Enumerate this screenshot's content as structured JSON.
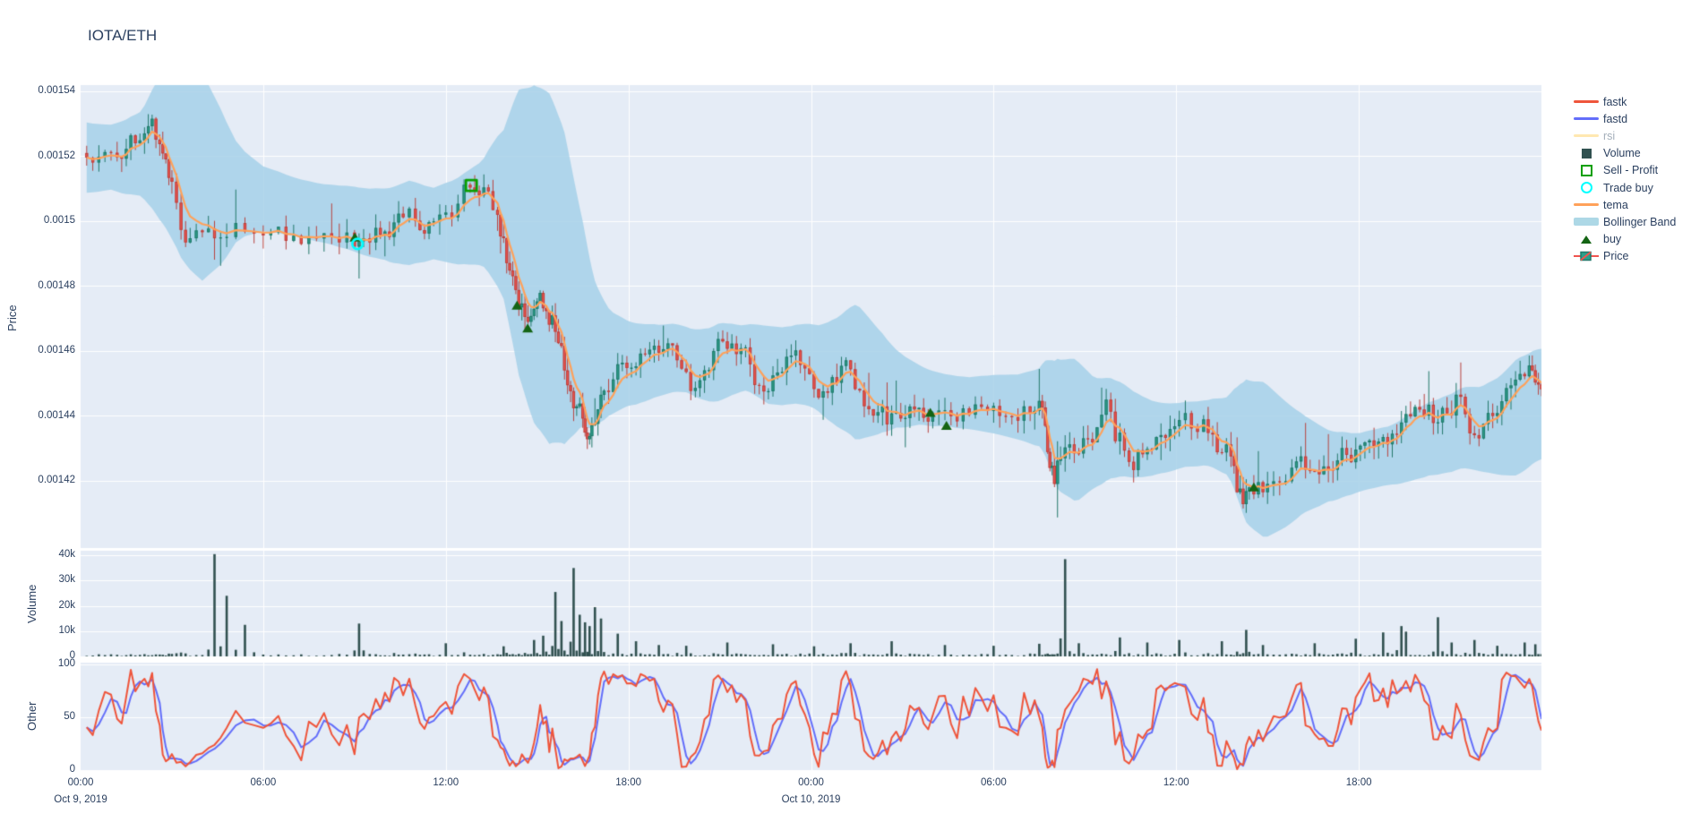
{
  "page": {
    "title": "IOTA/ETH"
  },
  "colors": {
    "text": "#2a3f5f",
    "dim_text": "#a4afba",
    "plot_bg": "#e5ecf6",
    "grid": "#ffffff",
    "candle_up": "#2ca08c",
    "candle_up_line": "#22786a",
    "candle_down": "#ef544f",
    "candle_down_line": "#b8433f",
    "volume_bar": "#315150",
    "tema": "#ffa15a",
    "fastk": "#ef553b",
    "fastd": "#636efa",
    "rsi": "#fecb52",
    "bollinger": "#add8e6",
    "buy": "#146414",
    "sell_profit": "#0a9f00",
    "trade_buy": "#00ffff"
  },
  "chart_data": {
    "type": "candlestick",
    "title": "IOTA/ETH",
    "grid": true,
    "legend_position": "right",
    "time_axis": {
      "range_hours": [
        0,
        48
      ],
      "ticks": [
        {
          "t": 0,
          "label": "00:00",
          "date": "Oct 9, 2019"
        },
        {
          "t": 6,
          "label": "06:00"
        },
        {
          "t": 12,
          "label": "12:00"
        },
        {
          "t": 18,
          "label": "18:00"
        },
        {
          "t": 24,
          "label": "00:00",
          "date": "Oct 10, 2019"
        },
        {
          "t": 30,
          "label": "06:00"
        },
        {
          "t": 36,
          "label": "12:00"
        },
        {
          "t": 42,
          "label": "18:00"
        }
      ]
    },
    "panels": {
      "price": {
        "ylabel": "Price",
        "range": [
          0.001399,
          0.001542
        ],
        "ticks": [
          {
            "v": 0.00154,
            "label": "0.00154"
          },
          {
            "v": 0.00152,
            "label": "0.00152"
          },
          {
            "v": 0.0015,
            "label": "0.0015"
          },
          {
            "v": 0.00148,
            "label": "0.00148"
          },
          {
            "v": 0.00146,
            "label": "0.00146"
          },
          {
            "v": 0.00144,
            "label": "0.00144"
          },
          {
            "v": 0.00142,
            "label": "0.00142"
          }
        ]
      },
      "volume": {
        "ylabel": "Volume",
        "range": [
          0,
          42000
        ],
        "ticks": [
          {
            "v": 40000,
            "label": "40k"
          },
          {
            "v": 30000,
            "label": "30k"
          },
          {
            "v": 20000,
            "label": "20k"
          },
          {
            "v": 10000,
            "label": "10k"
          },
          {
            "v": 0,
            "label": "0"
          }
        ]
      },
      "other": {
        "ylabel": "Other",
        "range": [
          0,
          100
        ],
        "ticks": [
          {
            "v": 100,
            "label": "100"
          },
          {
            "v": 50,
            "label": "50"
          },
          {
            "v": 0,
            "label": "0"
          }
        ]
      }
    },
    "series": {
      "price_close_anchors": [
        [
          0,
          0.001521
        ],
        [
          0.4,
          0.001518
        ],
        [
          0.8,
          0.001522
        ],
        [
          1.2,
          0.001519
        ],
        [
          1.5,
          0.001523
        ],
        [
          1.8,
          0.001525
        ],
        [
          2.1,
          0.001528
        ],
        [
          2.35,
          0.001531
        ],
        [
          2.6,
          0.001524
        ],
        [
          2.8,
          0.001519
        ],
        [
          3.0,
          0.001513
        ],
        [
          3.3,
          0.001497
        ],
        [
          3.6,
          0.001495
        ],
        [
          4.0,
          0.001497
        ],
        [
          4.4,
          0.001494
        ],
        [
          4.8,
          0.001496
        ],
        [
          5.4,
          0.001497
        ],
        [
          6.0,
          0.001496
        ],
        [
          6.5,
          0.001498
        ],
        [
          7.0,
          0.001495
        ],
        [
          7.5,
          0.001495
        ],
        [
          8.0,
          0.001496
        ],
        [
          8.5,
          0.001494
        ],
        [
          9.0,
          0.001493
        ],
        [
          9.3,
          0.001494
        ],
        [
          9.7,
          0.001498
        ],
        [
          10.0,
          0.001497
        ],
        [
          10.3,
          0.001499
        ],
        [
          10.6,
          0.001502
        ],
        [
          11.0,
          0.0015
        ],
        [
          11.3,
          0.001497
        ],
        [
          11.6,
          0.001499
        ],
        [
          12.0,
          0.001502
        ],
        [
          12.4,
          0.001506
        ],
        [
          12.8,
          0.001511
        ],
        [
          13.1,
          0.001509
        ],
        [
          13.4,
          0.00151
        ],
        [
          13.7,
          0.001503
        ],
        [
          13.9,
          0.001494
        ],
        [
          14.1,
          0.001485
        ],
        [
          14.3,
          0.001479
        ],
        [
          14.5,
          0.001474
        ],
        [
          14.7,
          0.001469
        ],
        [
          14.9,
          0.001474
        ],
        [
          15.1,
          0.001477
        ],
        [
          15.3,
          0.001472
        ],
        [
          15.5,
          0.00147
        ],
        [
          15.7,
          0.001463
        ],
        [
          15.9,
          0.001455
        ],
        [
          16.1,
          0.001448
        ],
        [
          16.3,
          0.001443
        ],
        [
          16.5,
          0.001439
        ],
        [
          16.65,
          0.001433
        ],
        [
          16.8,
          0.001437
        ],
        [
          17.0,
          0.001443
        ],
        [
          17.2,
          0.001448
        ],
        [
          17.5,
          0.001452
        ],
        [
          17.8,
          0.001457
        ],
        [
          18.1,
          0.001455
        ],
        [
          18.4,
          0.001459
        ],
        [
          18.7,
          0.001461
        ],
        [
          19.0,
          0.001459
        ],
        [
          19.3,
          0.001462
        ],
        [
          19.6,
          0.001457
        ],
        [
          19.9,
          0.001453
        ],
        [
          20.2,
          0.001449
        ],
        [
          20.5,
          0.001453
        ],
        [
          20.8,
          0.001459
        ],
        [
          21.1,
          0.001462
        ],
        [
          21.4,
          0.001462
        ],
        [
          21.7,
          0.001461
        ],
        [
          22.0,
          0.001456
        ],
        [
          22.3,
          0.00145
        ],
        [
          22.6,
          0.001448
        ],
        [
          22.9,
          0.001453
        ],
        [
          23.2,
          0.001459
        ],
        [
          23.5,
          0.001461
        ],
        [
          23.8,
          0.001455
        ],
        [
          24.1,
          0.001449
        ],
        [
          24.4,
          0.001447
        ],
        [
          24.7,
          0.001451
        ],
        [
          25.0,
          0.001455
        ],
        [
          25.3,
          0.001455
        ],
        [
          25.6,
          0.001448
        ],
        [
          25.9,
          0.001443
        ],
        [
          26.2,
          0.001441
        ],
        [
          26.5,
          0.001438
        ],
        [
          26.8,
          0.001441
        ],
        [
          27.1,
          0.001439
        ],
        [
          27.4,
          0.001441
        ],
        [
          27.7,
          0.001439
        ],
        [
          28.0,
          0.00144
        ],
        [
          28.4,
          0.001441
        ],
        [
          28.8,
          0.001439
        ],
        [
          29.2,
          0.001441
        ],
        [
          29.6,
          0.001442
        ],
        [
          30.0,
          0.001443
        ],
        [
          30.4,
          0.00144
        ],
        [
          30.8,
          0.001439
        ],
        [
          31.2,
          0.001441
        ],
        [
          31.5,
          0.001444
        ],
        [
          31.7,
          0.001437
        ],
        [
          31.85,
          0.001425
        ],
        [
          32.0,
          0.001419
        ],
        [
          32.2,
          0.001428
        ],
        [
          32.5,
          0.001431
        ],
        [
          32.8,
          0.001428
        ],
        [
          33.1,
          0.001433
        ],
        [
          33.4,
          0.001436
        ],
        [
          33.7,
          0.001446
        ],
        [
          34.0,
          0.001433
        ],
        [
          34.3,
          0.00143
        ],
        [
          34.6,
          0.001424
        ],
        [
          34.9,
          0.001428
        ],
        [
          35.2,
          0.00143
        ],
        [
          35.5,
          0.001434
        ],
        [
          35.8,
          0.001437
        ],
        [
          36.1,
          0.001439
        ],
        [
          36.5,
          0.001437
        ],
        [
          36.9,
          0.001438
        ],
        [
          37.2,
          0.001435
        ],
        [
          37.5,
          0.001429
        ],
        [
          37.8,
          0.001427
        ],
        [
          38.0,
          0.001417
        ],
        [
          38.2,
          0.001412
        ],
        [
          38.4,
          0.001419
        ],
        [
          38.7,
          0.001419
        ],
        [
          39.0,
          0.001419
        ],
        [
          39.4,
          0.00142
        ],
        [
          39.8,
          0.001424
        ],
        [
          40.1,
          0.001428
        ],
        [
          40.4,
          0.001424
        ],
        [
          40.7,
          0.001421
        ],
        [
          41.0,
          0.001424
        ],
        [
          41.3,
          0.001427
        ],
        [
          41.6,
          0.001427
        ],
        [
          41.9,
          0.001429
        ],
        [
          42.2,
          0.001432
        ],
        [
          42.5,
          0.00143
        ],
        [
          42.8,
          0.001433
        ],
        [
          43.1,
          0.001435
        ],
        [
          43.4,
          0.001437
        ],
        [
          43.7,
          0.001439
        ],
        [
          44.0,
          0.001441
        ],
        [
          44.3,
          0.001444
        ],
        [
          44.6,
          0.001437
        ],
        [
          44.9,
          0.001441
        ],
        [
          45.2,
          0.001446
        ],
        [
          45.5,
          0.00144
        ],
        [
          45.8,
          0.001434
        ],
        [
          46.1,
          0.001437
        ],
        [
          46.4,
          0.001441
        ],
        [
          46.7,
          0.001445
        ],
        [
          47.0,
          0.001449
        ],
        [
          47.3,
          0.001453
        ],
        [
          47.6,
          0.001455
        ],
        [
          47.8,
          0.00145
        ],
        [
          48.0,
          0.001449
        ]
      ],
      "bollinger_halfwidth_anchors": [
        [
          0,
          1.1e-05
        ],
        [
          1,
          1e-05
        ],
        [
          2,
          1.3e-05
        ],
        [
          2.6,
          2.2e-05
        ],
        [
          3.3,
          3e-05
        ],
        [
          4,
          3.2e-05
        ],
        [
          4.6,
          2.4e-05
        ],
        [
          5.2,
          1.4e-05
        ],
        [
          6,
          1e-05
        ],
        [
          7,
          9e-06
        ],
        [
          8,
          9e-06
        ],
        [
          9,
          1e-05
        ],
        [
          10,
          1.1e-05
        ],
        [
          10.8,
          1.3e-05
        ],
        [
          11.6,
          1.1e-05
        ],
        [
          12.3,
          1.3e-05
        ],
        [
          13.2,
          1.6e-05
        ],
        [
          13.9,
          2.6e-05
        ],
        [
          14.4,
          4.4e-05
        ],
        [
          14.9,
          5.2e-05
        ],
        [
          15.4,
          5.4e-05
        ],
        [
          15.9,
          4.8e-05
        ],
        [
          16.4,
          3.4e-05
        ],
        [
          16.9,
          2.2e-05
        ],
        [
          17.4,
          1.6e-05
        ],
        [
          18,
          1.3e-05
        ],
        [
          19,
          1.1e-05
        ],
        [
          20,
          1e-05
        ],
        [
          21,
          1.2e-05
        ],
        [
          21.8,
          1e-05
        ],
        [
          22.6,
          1.2e-05
        ],
        [
          23.4,
          1.2e-05
        ],
        [
          24.2,
          1.3e-05
        ],
        [
          24.9,
          1.7e-05
        ],
        [
          25.5,
          2.1e-05
        ],
        [
          26.1,
          1.7e-05
        ],
        [
          26.8,
          1.2e-05
        ],
        [
          27.6,
          9e-06
        ],
        [
          28.4,
          8e-06
        ],
        [
          29.2,
          8e-06
        ],
        [
          30,
          9e-06
        ],
        [
          30.8,
          1e-05
        ],
        [
          31.5,
          1.2e-05
        ],
        [
          32.1,
          2e-05
        ],
        [
          32.7,
          2.2e-05
        ],
        [
          33.3,
          1.7e-05
        ],
        [
          34,
          1.5e-05
        ],
        [
          34.7,
          1.3e-05
        ],
        [
          35.4,
          1.1e-05
        ],
        [
          36.2,
          1e-05
        ],
        [
          37,
          1e-05
        ],
        [
          37.7,
          1.2e-05
        ],
        [
          38.3,
          2.2e-05
        ],
        [
          38.9,
          2.4e-05
        ],
        [
          39.5,
          2e-05
        ],
        [
          40.2,
          1.5e-05
        ],
        [
          41,
          1.1e-05
        ],
        [
          42,
          9e-06
        ],
        [
          43,
          9e-06
        ],
        [
          44,
          1.1e-05
        ],
        [
          45,
          1.2e-05
        ],
        [
          46,
          1.3e-05
        ],
        [
          46.6,
          1.5e-05
        ],
        [
          47.2,
          1.8e-05
        ],
        [
          48,
          1.7e-05
        ]
      ],
      "volume_spikes": [
        [
          4.17,
          40500
        ],
        [
          4.5,
          24000
        ],
        [
          4.75,
          12500
        ],
        [
          7.1,
          13000
        ],
        [
          9.6,
          5200
        ],
        [
          11.5,
          4000
        ],
        [
          13.0,
          6500
        ],
        [
          13.5,
          8200
        ],
        [
          14.1,
          25500
        ],
        [
          14.45,
          14000
        ],
        [
          15.1,
          35000
        ],
        [
          15.35,
          16500
        ],
        [
          15.7,
          13500
        ],
        [
          15.95,
          12000
        ],
        [
          16.3,
          19500
        ],
        [
          16.6,
          15000
        ],
        [
          17.2,
          9000
        ],
        [
          17.8,
          6000
        ],
        [
          18.5,
          4500
        ],
        [
          19.5,
          4200
        ],
        [
          20.8,
          5500
        ],
        [
          22.4,
          4800
        ],
        [
          23.8,
          4000
        ],
        [
          25.0,
          5200
        ],
        [
          26.4,
          6000
        ],
        [
          28.0,
          4500
        ],
        [
          29.3,
          4200
        ],
        [
          30.5,
          5000
        ],
        [
          31.9,
          38500
        ],
        [
          32.3,
          5200
        ],
        [
          33.7,
          7500
        ],
        [
          34.6,
          5500
        ],
        [
          35.8,
          6500
        ],
        [
          37.0,
          6000
        ],
        [
          38.1,
          10500
        ],
        [
          38.6,
          4500
        ],
        [
          40.2,
          5200
        ],
        [
          41.5,
          7000
        ],
        [
          42.5,
          9500
        ],
        [
          43.05,
          12000
        ],
        [
          43.3,
          9800
        ],
        [
          44.3,
          15500
        ],
        [
          44.8,
          5500
        ],
        [
          45.5,
          6500
        ],
        [
          46.3,
          4200
        ],
        [
          47.2,
          5500
        ],
        [
          47.7,
          4800
        ]
      ],
      "generation": {
        "subdivisions": 2,
        "jitter": 3.5e-06,
        "seed": 11,
        "stoch_window": 9,
        "tema_alpha": 0.3,
        "band_alpha": 0.06,
        "fastd_smooth": 3
      }
    },
    "markers": {
      "buy": [
        [
          9.01,
          0.001495
        ],
        [
          14.34,
          0.001474
        ],
        [
          14.69,
          0.001467
        ],
        [
          27.92,
          0.001441
        ],
        [
          28.45,
          0.001437
        ],
        [
          38.55,
          0.001418
        ]
      ],
      "trade_buy": [
        [
          9.1,
          0.001493
        ]
      ],
      "sell_profit": [
        [
          12.84,
          0.001511
        ]
      ]
    },
    "legend": [
      {
        "label": "fastk",
        "kind": "line",
        "color": "#ef553b",
        "dimmed": false
      },
      {
        "label": "fastd",
        "kind": "line",
        "color": "#636efa",
        "dimmed": false
      },
      {
        "label": "rsi",
        "kind": "line",
        "color": "#fecb52",
        "dimmed": true
      },
      {
        "label": "Volume",
        "kind": "square",
        "color": "#315150",
        "dimmed": false
      },
      {
        "label": "Sell - Profit",
        "kind": "open-square",
        "color": "#0a9f00",
        "dimmed": false
      },
      {
        "label": "Trade buy",
        "kind": "open-circle",
        "color": "#00ffff",
        "dimmed": false
      },
      {
        "label": "tema",
        "kind": "line",
        "color": "#ffa15a",
        "dimmed": false
      },
      {
        "label": "Bollinger Band",
        "kind": "band",
        "color": "#add8e6",
        "dimmed": false
      },
      {
        "label": "buy",
        "kind": "triangle",
        "color": "#146414",
        "dimmed": false
      },
      {
        "label": "Price",
        "kind": "candle",
        "color": "#2ca08c",
        "dimmed": false
      }
    ]
  }
}
